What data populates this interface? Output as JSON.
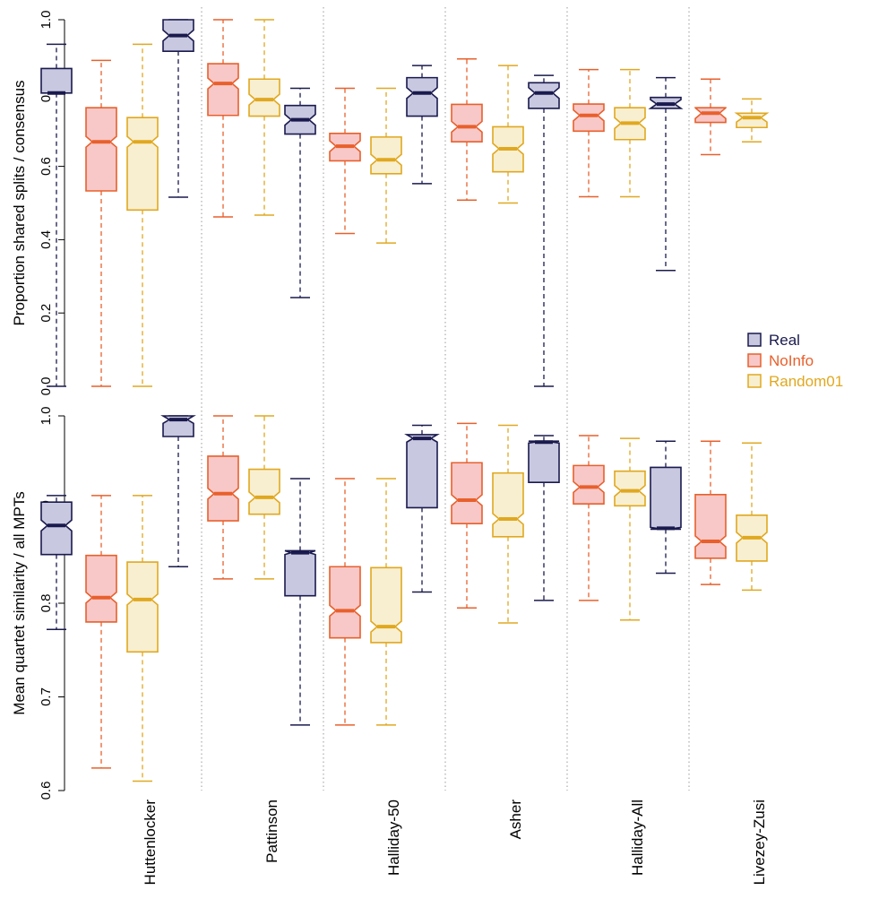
{
  "chart_data": [
    {
      "type": "boxplot",
      "ylabel": "Proportion shared splits / consensus",
      "ylim": [
        0,
        1
      ],
      "yticks": [
        "0.0",
        "0.2",
        "0.4",
        "0.6",
        "0.8",
        "1.0"
      ],
      "categories": [
        "Huttenlocker",
        "Pattinson",
        "Halliday-50",
        "Asher",
        "Halliday-All",
        "Livezey-Zusi"
      ],
      "notched": true,
      "series": [
        {
          "name": "Real",
          "color": "#1a1a4e",
          "fill": "#c8c8e0",
          "boxes": [
            {
              "min": 0.0,
              "q1": 0.8,
              "median": 0.8,
              "q3": 0.867,
              "max": 0.933
            },
            {
              "min": 0.516,
              "q1": 0.914,
              "median": 0.957,
              "q3": 1.0,
              "max": 1.0
            },
            {
              "min": 0.242,
              "q1": 0.688,
              "median": 0.727,
              "q3": 0.766,
              "max": 0.813
            },
            {
              "min": 0.553,
              "q1": 0.737,
              "median": 0.8,
              "q3": 0.842,
              "max": 0.875
            },
            {
              "min": 0.0,
              "q1": 0.758,
              "median": 0.8,
              "q3": 0.828,
              "max": 0.848
            },
            {
              "min": 0.316,
              "q1": 0.758,
              "median": 0.77,
              "q3": 0.788,
              "max": 0.842
            }
          ]
        },
        {
          "name": "NoInfo",
          "color": "#e8602c",
          "fill": "#f8c8c8",
          "boxes": [
            {
              "min": 0.0,
              "q1": 0.533,
              "median": 0.667,
              "q3": 0.76,
              "max": 0.889
            },
            {
              "min": 0.462,
              "q1": 0.739,
              "median": 0.826,
              "q3": 0.88,
              "max": 1.0
            },
            {
              "min": 0.417,
              "q1": 0.615,
              "median": 0.655,
              "q3": 0.69,
              "max": 0.813
            },
            {
              "min": 0.508,
              "q1": 0.667,
              "median": 0.708,
              "q3": 0.769,
              "max": 0.893
            },
            {
              "min": 0.517,
              "q1": 0.696,
              "median": 0.739,
              "q3": 0.77,
              "max": 0.864
            },
            {
              "min": 0.632,
              "q1": 0.72,
              "median": 0.745,
              "q3": 0.76,
              "max": 0.838
            }
          ]
        },
        {
          "name": "Random01",
          "color": "#e0a820",
          "fill": "#f8efd0",
          "boxes": [
            {
              "min": 0.0,
              "q1": 0.481,
              "median": 0.667,
              "q3": 0.733,
              "max": 0.933
            },
            {
              "min": 0.467,
              "q1": 0.737,
              "median": 0.782,
              "q3": 0.838,
              "max": 1.0
            },
            {
              "min": 0.391,
              "q1": 0.58,
              "median": 0.618,
              "q3": 0.68,
              "max": 0.813
            },
            {
              "min": 0.5,
              "q1": 0.585,
              "median": 0.648,
              "q3": 0.708,
              "max": 0.875
            },
            {
              "min": 0.517,
              "q1": 0.673,
              "median": 0.718,
              "q3": 0.76,
              "max": 0.864
            },
            {
              "min": 0.667,
              "q1": 0.706,
              "median": 0.733,
              "q3": 0.745,
              "max": 0.784
            }
          ]
        }
      ]
    },
    {
      "type": "boxplot",
      "ylabel": "Mean quartet similarity / all MPTs",
      "ylim": [
        0.6,
        1.0
      ],
      "yticks": [
        "0.6",
        "0.7",
        "0.8",
        "0.9",
        "1.0"
      ],
      "categories": [
        "Huttenlocker",
        "Pattinson",
        "Halliday-50",
        "Asher",
        "Halliday-All",
        "Livezey-Zusi"
      ],
      "notched": true,
      "series": [
        {
          "name": "Real",
          "color": "#1a1a4e",
          "fill": "#c8c8e0",
          "boxes": [
            {
              "min": 0.772,
              "q1": 0.852,
              "median": 0.883,
              "q3": 0.908,
              "max": 0.915
            },
            {
              "min": 0.839,
              "q1": 0.978,
              "median": 0.996,
              "q3": 1.0,
              "max": 1.0
            },
            {
              "min": 0.67,
              "q1": 0.808,
              "median": 0.854,
              "q3": 0.856,
              "max": 0.933
            },
            {
              "min": 0.812,
              "q1": 0.902,
              "median": 0.976,
              "q3": 0.98,
              "max": 0.99
            },
            {
              "min": 0.803,
              "q1": 0.929,
              "median": 0.972,
              "q3": 0.973,
              "max": 0.979
            },
            {
              "min": 0.832,
              "q1": 0.879,
              "median": 0.88,
              "q3": 0.945,
              "max": 0.973
            }
          ]
        },
        {
          "name": "NoInfo",
          "color": "#e8602c",
          "fill": "#f8c8c8",
          "boxes": [
            {
              "min": 0.624,
              "q1": 0.78,
              "median": 0.806,
              "q3": 0.851,
              "max": 0.915
            },
            {
              "min": 0.826,
              "q1": 0.888,
              "median": 0.917,
              "q3": 0.957,
              "max": 1.0
            },
            {
              "min": 0.67,
              "q1": 0.763,
              "median": 0.792,
              "q3": 0.839,
              "max": 0.933
            },
            {
              "min": 0.795,
              "q1": 0.885,
              "median": 0.91,
              "q3": 0.95,
              "max": 0.992
            },
            {
              "min": 0.803,
              "q1": 0.906,
              "median": 0.924,
              "q3": 0.947,
              "max": 0.979
            },
            {
              "min": 0.82,
              "q1": 0.848,
              "median": 0.866,
              "q3": 0.916,
              "max": 0.973
            }
          ]
        },
        {
          "name": "Random01",
          "color": "#e0a820",
          "fill": "#f8efd0",
          "boxes": [
            {
              "min": 0.61,
              "q1": 0.748,
              "median": 0.804,
              "q3": 0.844,
              "max": 0.915
            },
            {
              "min": 0.826,
              "q1": 0.895,
              "median": 0.913,
              "q3": 0.943,
              "max": 1.0
            },
            {
              "min": 0.67,
              "q1": 0.758,
              "median": 0.775,
              "q3": 0.838,
              "max": 0.933
            },
            {
              "min": 0.779,
              "q1": 0.871,
              "median": 0.89,
              "q3": 0.939,
              "max": 0.99
            },
            {
              "min": 0.782,
              "q1": 0.904,
              "median": 0.92,
              "q3": 0.941,
              "max": 0.976
            },
            {
              "min": 0.814,
              "q1": 0.845,
              "median": 0.87,
              "q3": 0.894,
              "max": 0.971
            }
          ]
        }
      ]
    }
  ],
  "legend": {
    "placement": "right",
    "items": [
      {
        "label": "Real",
        "color": "#1a1a4e",
        "fill": "#c8c8e0"
      },
      {
        "label": "NoInfo",
        "color": "#e8602c",
        "fill": "#f8c8c8"
      },
      {
        "label": "Random01",
        "color": "#e0a820",
        "fill": "#f8efd0"
      }
    ]
  }
}
